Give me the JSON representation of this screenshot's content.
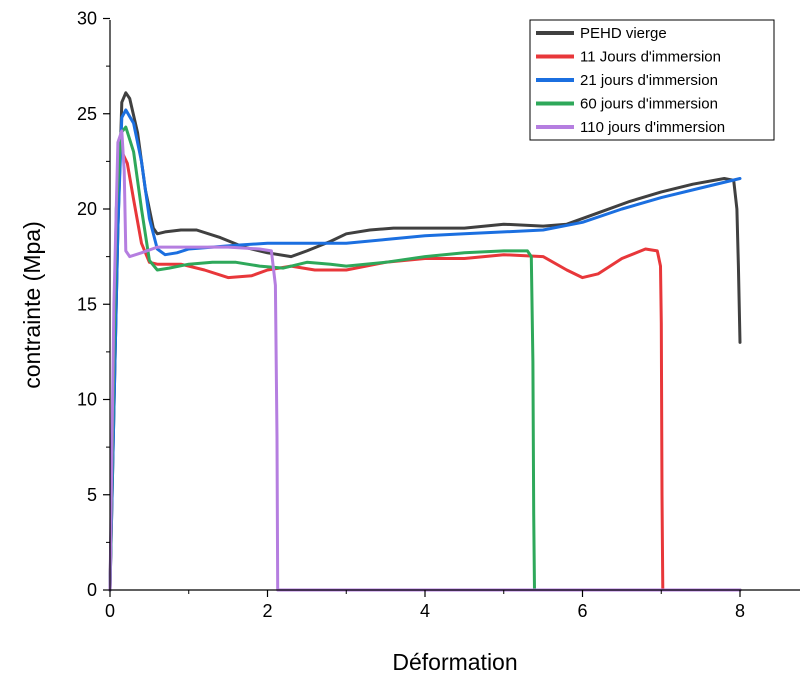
{
  "chart_data": {
    "type": "line",
    "xlabel": "Déformation",
    "ylabel": "contrainte (Mpa)",
    "xlim": [
      0,
      8.9
    ],
    "ylim": [
      0,
      30
    ],
    "x_ticks": [
      0,
      2,
      4,
      6,
      8
    ],
    "y_ticks": [
      0,
      5,
      10,
      15,
      20,
      25,
      30
    ],
    "grid": false,
    "legend_position": "top-right",
    "series": [
      {
        "name": "PEHD vierge",
        "color": "#404040",
        "points": [
          [
            0.0,
            0.0
          ],
          [
            0.1,
            19.0
          ],
          [
            0.15,
            25.6
          ],
          [
            0.2,
            26.1
          ],
          [
            0.25,
            25.8
          ],
          [
            0.35,
            24.0
          ],
          [
            0.45,
            21.0
          ],
          [
            0.55,
            19.0
          ],
          [
            0.6,
            18.7
          ],
          [
            0.7,
            18.8
          ],
          [
            0.9,
            18.9
          ],
          [
            1.1,
            18.9
          ],
          [
            1.4,
            18.5
          ],
          [
            1.7,
            18.0
          ],
          [
            2.0,
            17.7
          ],
          [
            2.3,
            17.5
          ],
          [
            2.5,
            17.8
          ],
          [
            2.8,
            18.3
          ],
          [
            3.0,
            18.7
          ],
          [
            3.3,
            18.9
          ],
          [
            3.6,
            19.0
          ],
          [
            4.0,
            19.0
          ],
          [
            4.5,
            19.0
          ],
          [
            5.0,
            19.2
          ],
          [
            5.5,
            19.1
          ],
          [
            5.8,
            19.2
          ],
          [
            6.2,
            19.8
          ],
          [
            6.6,
            20.4
          ],
          [
            7.0,
            20.9
          ],
          [
            7.4,
            21.3
          ],
          [
            7.8,
            21.6
          ],
          [
            7.92,
            21.5
          ],
          [
            7.96,
            20.0
          ],
          [
            7.98,
            17.0
          ],
          [
            8.0,
            13.0
          ]
        ]
      },
      {
        "name": "11 Jours d'immersion",
        "color": "#e8373a",
        "points": [
          [
            0.0,
            0.0
          ],
          [
            0.08,
            18.0
          ],
          [
            0.12,
            22.8
          ],
          [
            0.15,
            23.0
          ],
          [
            0.22,
            22.4
          ],
          [
            0.3,
            20.5
          ],
          [
            0.4,
            18.2
          ],
          [
            0.5,
            17.2
          ],
          [
            0.6,
            17.1
          ],
          [
            0.9,
            17.1
          ],
          [
            1.2,
            16.8
          ],
          [
            1.5,
            16.4
          ],
          [
            1.8,
            16.5
          ],
          [
            2.0,
            16.8
          ],
          [
            2.3,
            17.0
          ],
          [
            2.6,
            16.8
          ],
          [
            3.0,
            16.8
          ],
          [
            3.5,
            17.2
          ],
          [
            4.0,
            17.4
          ],
          [
            4.5,
            17.4
          ],
          [
            5.0,
            17.6
          ],
          [
            5.5,
            17.5
          ],
          [
            5.8,
            16.8
          ],
          [
            6.0,
            16.4
          ],
          [
            6.2,
            16.6
          ],
          [
            6.5,
            17.4
          ],
          [
            6.8,
            17.9
          ],
          [
            6.95,
            17.8
          ],
          [
            6.99,
            17.0
          ],
          [
            7.0,
            14.0
          ],
          [
            7.01,
            5.0
          ],
          [
            7.02,
            0.0
          ],
          [
            8.0,
            0.0
          ]
        ]
      },
      {
        "name": "21 jours d'immersion",
        "color": "#1b6fe0",
        "points": [
          [
            0.0,
            0.0
          ],
          [
            0.1,
            19.0
          ],
          [
            0.15,
            24.8
          ],
          [
            0.2,
            25.2
          ],
          [
            0.3,
            24.5
          ],
          [
            0.4,
            22.5
          ],
          [
            0.5,
            19.5
          ],
          [
            0.6,
            17.9
          ],
          [
            0.7,
            17.6
          ],
          [
            0.85,
            17.7
          ],
          [
            1.0,
            17.9
          ],
          [
            1.3,
            18.0
          ],
          [
            1.6,
            18.1
          ],
          [
            2.0,
            18.2
          ],
          [
            2.5,
            18.2
          ],
          [
            3.0,
            18.2
          ],
          [
            3.5,
            18.4
          ],
          [
            4.0,
            18.6
          ],
          [
            4.5,
            18.7
          ],
          [
            5.0,
            18.8
          ],
          [
            5.5,
            18.9
          ],
          [
            6.0,
            19.3
          ],
          [
            6.5,
            20.0
          ],
          [
            7.0,
            20.6
          ],
          [
            7.5,
            21.1
          ],
          [
            8.0,
            21.6
          ]
        ]
      },
      {
        "name": "60 jours d'immersion",
        "color": "#2ea85a",
        "points": [
          [
            0.0,
            0.0
          ],
          [
            0.08,
            20.0
          ],
          [
            0.14,
            24.0
          ],
          [
            0.2,
            24.3
          ],
          [
            0.3,
            23.0
          ],
          [
            0.4,
            20.0
          ],
          [
            0.5,
            17.3
          ],
          [
            0.6,
            16.8
          ],
          [
            0.75,
            16.9
          ],
          [
            1.0,
            17.1
          ],
          [
            1.3,
            17.2
          ],
          [
            1.6,
            17.2
          ],
          [
            1.9,
            17.0
          ],
          [
            2.2,
            16.9
          ],
          [
            2.5,
            17.2
          ],
          [
            2.8,
            17.1
          ],
          [
            3.0,
            17.0
          ],
          [
            3.5,
            17.2
          ],
          [
            4.0,
            17.5
          ],
          [
            4.5,
            17.7
          ],
          [
            5.0,
            17.8
          ],
          [
            5.3,
            17.8
          ],
          [
            5.35,
            17.5
          ],
          [
            5.37,
            12.0
          ],
          [
            5.38,
            4.0
          ],
          [
            5.39,
            0.0
          ],
          [
            8.0,
            0.0
          ]
        ]
      },
      {
        "name": "110 jours d'immersion",
        "color": "#b57ee0",
        "points": [
          [
            0.0,
            0.0
          ],
          [
            0.05,
            15.0
          ],
          [
            0.1,
            23.5
          ],
          [
            0.15,
            24.1
          ],
          [
            0.18,
            22.0
          ],
          [
            0.2,
            17.8
          ],
          [
            0.25,
            17.5
          ],
          [
            0.4,
            17.7
          ],
          [
            0.6,
            18.0
          ],
          [
            1.0,
            18.0
          ],
          [
            1.5,
            18.0
          ],
          [
            1.9,
            17.9
          ],
          [
            2.05,
            17.8
          ],
          [
            2.1,
            16.0
          ],
          [
            2.12,
            8.0
          ],
          [
            2.13,
            0.0
          ],
          [
            8.0,
            0.0
          ]
        ]
      }
    ]
  }
}
